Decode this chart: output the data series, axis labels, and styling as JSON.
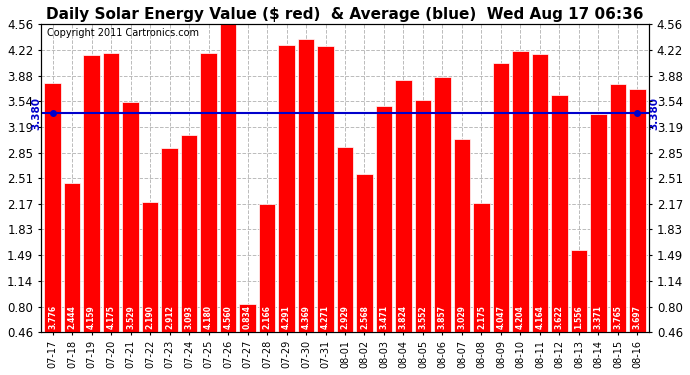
{
  "title": "Daily Solar Energy Value ($ red)  & Average (blue)  Wed Aug 17 06:36",
  "copyright": "Copyright 2011 Cartronics.com",
  "categories": [
    "07-17",
    "07-18",
    "07-19",
    "07-20",
    "07-21",
    "07-22",
    "07-23",
    "07-24",
    "07-25",
    "07-26",
    "07-27",
    "07-28",
    "07-29",
    "07-30",
    "07-31",
    "08-01",
    "08-02",
    "08-03",
    "08-04",
    "08-05",
    "08-06",
    "08-07",
    "08-08",
    "08-09",
    "08-10",
    "08-11",
    "08-12",
    "08-13",
    "08-14",
    "08-15",
    "08-16"
  ],
  "values": [
    3.776,
    2.444,
    4.159,
    4.175,
    3.529,
    2.19,
    2.912,
    3.093,
    4.18,
    4.56,
    0.834,
    2.166,
    4.291,
    4.369,
    4.271,
    2.929,
    2.568,
    3.471,
    3.824,
    3.552,
    3.857,
    3.029,
    2.175,
    4.047,
    4.204,
    4.164,
    3.622,
    1.556,
    3.371,
    3.765,
    3.697
  ],
  "average": 3.38,
  "bar_color": "#ff0000",
  "avg_line_color": "#0000cc",
  "avg_label_color": "#0000cc",
  "background_color": "#ffffff",
  "bar_edge_color": "#ffffff",
  "ylim_min": 0.46,
  "ylim_max": 4.56,
  "yticks": [
    0.46,
    0.8,
    1.14,
    1.49,
    1.83,
    2.17,
    2.51,
    2.85,
    3.19,
    3.54,
    3.88,
    4.22,
    4.56
  ],
  "title_fontsize": 11,
  "copyright_fontsize": 7,
  "value_label_fontsize": 5.5,
  "tick_fontsize": 8.5,
  "avg_label_fontsize": 7.5
}
